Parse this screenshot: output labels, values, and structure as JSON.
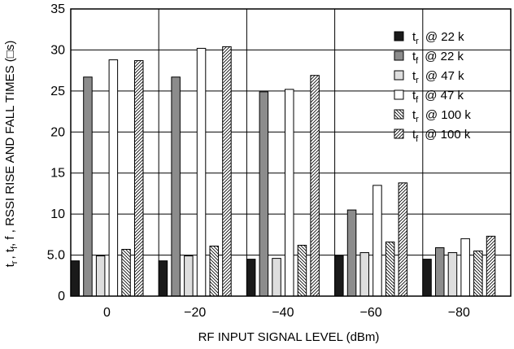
{
  "chart_data": {
    "type": "bar",
    "xlabel": "RF INPUT SIGNAL LEVEL (dBm)",
    "ylabel": "t r , t f , RSSI RISE AND FALL TIMES (□s)",
    "ylim": [
      0,
      35
    ],
    "y_ticks": [
      "0",
      "5.0",
      "10",
      "15",
      "20",
      "25",
      "30",
      "35"
    ],
    "categories": [
      "0",
      "−20",
      "−40",
      "−60",
      "−80"
    ],
    "grid": true,
    "legend_position": "top-right",
    "series": [
      {
        "name_main": "t",
        "name_sub": "r",
        "name_rest": "@ 22 k",
        "fill": "#1a1a1a",
        "pattern": "none",
        "values": [
          4.3,
          4.3,
          4.5,
          4.9,
          4.5
        ]
      },
      {
        "name_main": "t",
        "name_sub": "f",
        "name_rest": "@ 22 k",
        "fill": "#8c8c8c",
        "pattern": "none",
        "values": [
          26.7,
          26.7,
          24.9,
          10.5,
          5.9
        ]
      },
      {
        "name_main": "t",
        "name_sub": "r",
        "name_rest": "@ 47 k",
        "fill": "#dedede",
        "pattern": "none",
        "values": [
          4.9,
          4.9,
          4.6,
          5.3,
          5.3
        ]
      },
      {
        "name_main": "t",
        "name_sub": "f",
        "name_rest": "@ 47 k",
        "fill": "#ffffff",
        "pattern": "none",
        "values": [
          28.8,
          30.2,
          25.2,
          13.5,
          7.0
        ]
      },
      {
        "name_main": "t",
        "name_sub": "r",
        "name_rest": "@ 100 k",
        "fill": "#ffffff",
        "pattern": "backslash",
        "values": [
          5.7,
          6.1,
          6.2,
          6.6,
          5.5
        ]
      },
      {
        "name_main": "t",
        "name_sub": "f",
        "name_rest": "@ 100 k",
        "fill": "#ffffff",
        "pattern": "slash",
        "values": [
          28.7,
          30.4,
          26.9,
          13.8,
          7.3
        ]
      }
    ]
  }
}
